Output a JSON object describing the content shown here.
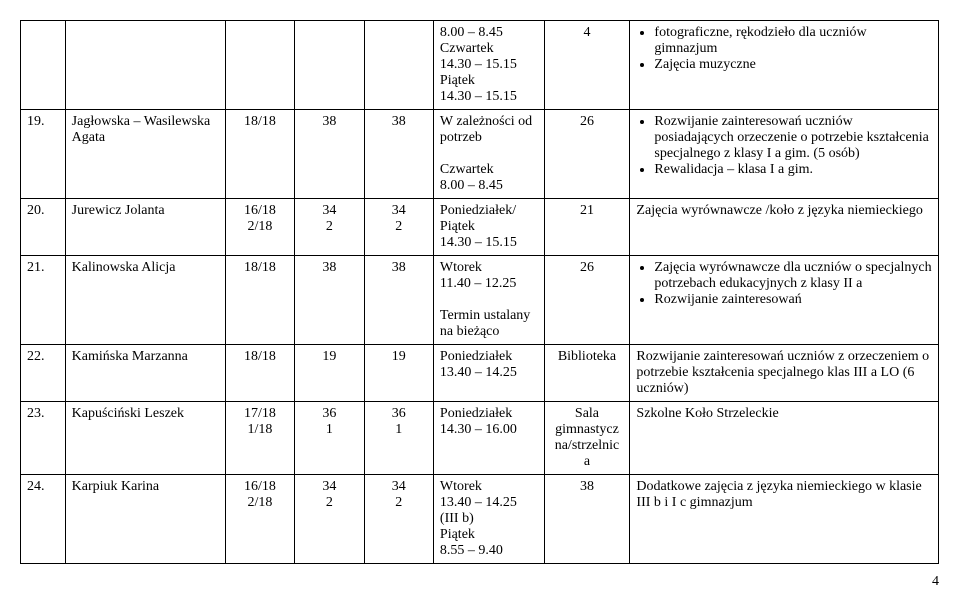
{
  "rows": [
    {
      "num": "",
      "name": "",
      "c2": "",
      "c3": "",
      "c4": "",
      "time": "8.00 – 8.45\nCzwartek\n14.30 – 15.15\nPiątek\n14.30 – 15.15",
      "room": "4",
      "desc_bullets": [
        "fotograficzne, rękodzieło dla uczniów gimnazjum",
        "Zajęcia muzyczne"
      ]
    },
    {
      "num": "19.",
      "name": "Jagłowska – Wasilewska Agata",
      "c2": "18/18",
      "c3": "38",
      "c4": "38",
      "time": "W zależności od potrzeb\n\nCzwartek\n8.00 – 8.45",
      "room": "26",
      "desc_bullets": [
        "Rozwijanie zainteresowań uczniów posiadających orzeczenie o potrzebie kształcenia specjalnego z klasy I a gim. (5 osób)",
        "Rewalidacja – klasa I a gim."
      ]
    },
    {
      "num": "20.",
      "name": "Jurewicz Jolanta",
      "c2": "16/18\n2/18",
      "c3": "34\n2",
      "c4": "34\n2",
      "time": "Poniedziałek/\nPiątek\n14.30 – 15.15",
      "room": "21",
      "desc_plain": "Zajęcia wyrównawcze /koło z języka niemieckiego"
    },
    {
      "num": "21.",
      "name": "Kalinowska Alicja",
      "c2": "18/18",
      "c3": "38",
      "c4": "38",
      "time": "Wtorek\n 11.40 – 12.25\n\nTermin ustalany na bieżąco",
      "room": "26",
      "desc_bullets": [
        "Zajęcia wyrównawcze dla uczniów o specjalnych potrzebach edukacyjnych z klasy II a",
        "Rozwijanie zainteresowań"
      ]
    },
    {
      "num": "22.",
      "name": "Kamińska Marzanna",
      "c2": "18/18",
      "c3": "19",
      "c4": "19",
      "time": "Poniedziałek\n13.40 – 14.25",
      "room": "Biblioteka",
      "desc_plain": "Rozwijanie zainteresowań uczniów z orzeczeniem o potrzebie kształcenia specjalnego klas III a LO (6 uczniów)"
    },
    {
      "num": "23.",
      "name": "Kapuściński Leszek",
      "c2": "17/18\n1/18",
      "c3": "36\n1",
      "c4": "36\n1",
      "time": "Poniedziałek\n14.30 – 16.00",
      "room": "Sala gimnastycz na/strzelnic a",
      "desc_plain": "Szkolne Koło Strzeleckie"
    },
    {
      "num": "24.",
      "name": "Karpiuk Karina",
      "c2": "16/18\n2/18",
      "c3": "34\n2",
      "c4": "34\n2",
      "time": "Wtorek\n13.40 – 14.25\n(III b)\nPiątek\n8.55 – 9.40",
      "room": "38",
      "desc_plain": "Dodatkowe zajęcia z języka niemieckiego w klasie III b i I c gimnazjum"
    }
  ],
  "page_number": "4"
}
